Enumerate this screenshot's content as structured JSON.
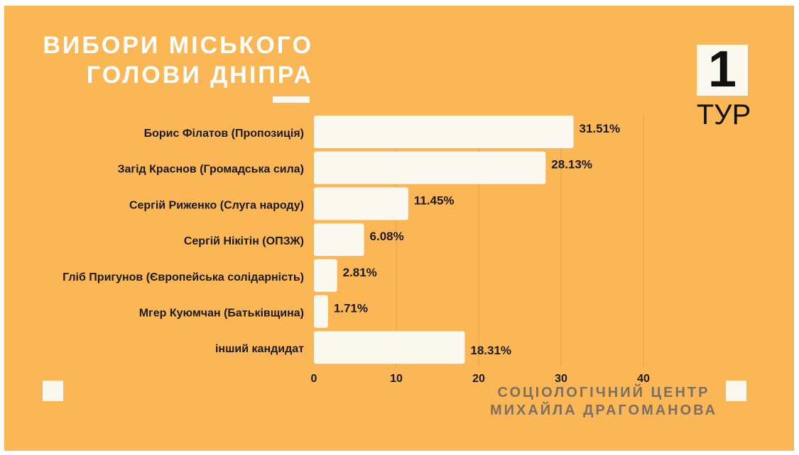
{
  "title": {
    "line1": "ВИБОРИ МІСЬКОГО",
    "line2": "ГОЛОВИ ДНІПРА"
  },
  "round": {
    "number": "1",
    "label": "ТУР"
  },
  "footer": {
    "line1": "СОЦІОЛОГІЧНИЙ ЦЕНТР",
    "line2": "МИХАЙЛА ДРАГОМАНОВА"
  },
  "colors": {
    "background": "#fbb755",
    "bar": "#fbf8ef",
    "footer_text": "#7b6e63"
  },
  "chart_data": {
    "type": "bar",
    "orientation": "horizontal",
    "categories": [
      "Борис Філатов (Пропозиція)",
      "Загід Краснов (Громадська сила)",
      "Сергій Риженко (Слуга народу)",
      "Сергій Нікітін (ОПЗЖ)",
      "Гліб Пригунов (Європейська солідарність)",
      "Мгер Куюмчан (Батьківщина)",
      "інший кандидат"
    ],
    "values": [
      31.51,
      28.13,
      11.45,
      6.08,
      2.81,
      1.71,
      18.31
    ],
    "value_labels": [
      "31.51%",
      "28.13%",
      "11.45%",
      "6.08%",
      "2.81%",
      "1.71%",
      "18.31%"
    ],
    "xlim": [
      0,
      40
    ],
    "xticks": [
      0,
      10,
      20,
      30,
      40
    ],
    "grid": true,
    "legend": "none"
  }
}
